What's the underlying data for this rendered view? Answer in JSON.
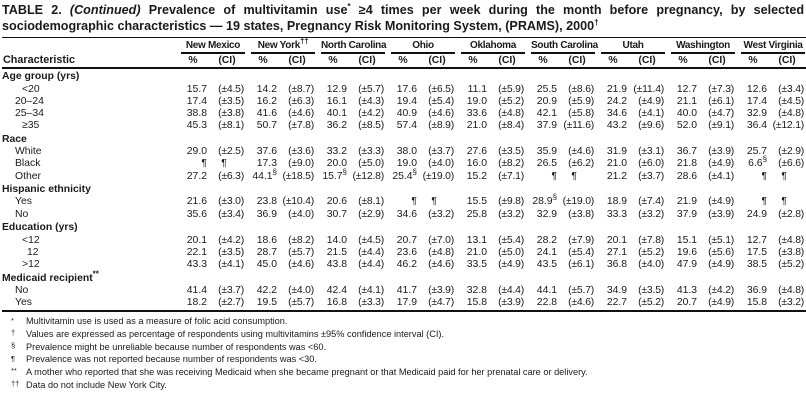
{
  "title": {
    "prefix": "TABLE 2.",
    "continued": "(Continued)",
    "rest": "Prevalence of multivitamin use* ≥4 times per week during the month before pregnancy, by selected sociodemographic characteristics — 19 states, Pregnancy Risk Monitoring System, (PRAMS), 2000†"
  },
  "header": {
    "characteristic": "Characteristic",
    "pct": "%",
    "ci": "(CI)",
    "states": [
      "New Mexico",
      "New York††",
      "North Carolina",
      "Ohio",
      "Oklahoma",
      "South Carolina",
      "Utah",
      "Washington",
      "West Virginia"
    ]
  },
  "sections": [
    {
      "label": "Age group (yrs)",
      "rows": [
        {
          "label": "<20",
          "cells": [
            [
              "15.7",
              "(±4.5)"
            ],
            [
              "14.2",
              "(±8.7)"
            ],
            [
              "12.9",
              "(±5.7)"
            ],
            [
              "17.6",
              "(±6.5)"
            ],
            [
              "11.1",
              "(±5.9)"
            ],
            [
              "25.5",
              "(±8.6)"
            ],
            [
              "21.9",
              "(±11.4)"
            ],
            [
              "12.7",
              "(±7.3)"
            ],
            [
              "12.6",
              "(±3.4)"
            ]
          ]
        },
        {
          "label": "20–24",
          "cells": [
            [
              "17.4",
              "(±3.5)"
            ],
            [
              "16.2",
              "(±6.3)"
            ],
            [
              "16.1",
              "(±4.3)"
            ],
            [
              "19.4",
              "(±5.4)"
            ],
            [
              "19.0",
              "(±5.2)"
            ],
            [
              "20.9",
              "(±5.9)"
            ],
            [
              "24.2",
              "(±4.9)"
            ],
            [
              "21.1",
              "(±6.1)"
            ],
            [
              "17.4",
              "(±4.5)"
            ]
          ]
        },
        {
          "label": "25–34",
          "cells": [
            [
              "38.8",
              "(±3.8)"
            ],
            [
              "41.6",
              "(±4.6)"
            ],
            [
              "40.1",
              "(±4.2)"
            ],
            [
              "40.9",
              "(±4.6)"
            ],
            [
              "33.6",
              "(±4.8)"
            ],
            [
              "42.1",
              "(±5.8)"
            ],
            [
              "34.6",
              "(±4.1)"
            ],
            [
              "40.0",
              "(±4.7)"
            ],
            [
              "32.9",
              "(±4.8)"
            ]
          ]
        },
        {
          "label": "≥35",
          "cells": [
            [
              "45.3",
              "(±8.1)"
            ],
            [
              "50.7",
              "(±7.8)"
            ],
            [
              "36.2",
              "(±8.5)"
            ],
            [
              "57.4",
              "(±8.9)"
            ],
            [
              "21.0",
              "(±8.4)"
            ],
            [
              "37.9",
              "(±11.6)"
            ],
            [
              "43.2",
              "(±9.6)"
            ],
            [
              "52.0",
              "(±9.1)"
            ],
            [
              "36.4",
              "(±12.1)"
            ]
          ]
        }
      ]
    },
    {
      "label": "Race",
      "rows": [
        {
          "label": "White",
          "cells": [
            [
              "29.0",
              "(±2.5)"
            ],
            [
              "37.6",
              "(±3.6)"
            ],
            [
              "33.2",
              "(±3.3)"
            ],
            [
              "38.0",
              "(±3.7)"
            ],
            [
              "27.6",
              "(±3.5)"
            ],
            [
              "35.9",
              "(±4.6)"
            ],
            [
              "31.9",
              "(±3.1)"
            ],
            [
              "36.7",
              "(±3.9)"
            ],
            [
              "25.7",
              "(±2.9)"
            ]
          ]
        },
        {
          "label": "Black",
          "cells": [
            [
              "¶",
              "¶"
            ],
            [
              "17.3",
              "(±9.0)"
            ],
            [
              "20.0",
              "(±5.0)"
            ],
            [
              "19.0",
              "(±4.0)"
            ],
            [
              "16.0",
              "(±8.2)"
            ],
            [
              "26.5",
              "(±6.2)"
            ],
            [
              "21.0",
              "(±6.0)"
            ],
            [
              "21.8",
              "(±4.9)"
            ],
            [
              "6.6§",
              "(±6.6)"
            ]
          ]
        },
        {
          "label": "Other",
          "cells": [
            [
              "27.2",
              "(±6.3)"
            ],
            [
              "44.1§",
              "(±18.5)"
            ],
            [
              "15.7§",
              "(±12.8)"
            ],
            [
              "25.4§",
              "(±19.0)"
            ],
            [
              "15.2",
              "(±7.1)"
            ],
            [
              "¶",
              "¶"
            ],
            [
              "21.2",
              "(±3.7)"
            ],
            [
              "28.6",
              "(±4.1)"
            ],
            [
              "¶",
              "¶"
            ]
          ]
        }
      ]
    },
    {
      "label": "Hispanic ethnicity",
      "rows": [
        {
          "label": "Yes",
          "cells": [
            [
              "21.6",
              "(±3.0)"
            ],
            [
              "23.8",
              "(±10.4)"
            ],
            [
              "20.6",
              "(±8.1)"
            ],
            [
              "¶",
              "¶"
            ],
            [
              "15.5",
              "(±9.8)"
            ],
            [
              "28.9§",
              "(±19.0)"
            ],
            [
              "18.9",
              "(±7.4)"
            ],
            [
              "21.9",
              "(±4.9)"
            ],
            [
              "¶",
              "¶"
            ]
          ]
        },
        {
          "label": "No",
          "cells": [
            [
              "35.6",
              "(±3.4)"
            ],
            [
              "36.9",
              "(±4.0)"
            ],
            [
              "30.7",
              "(±2.9)"
            ],
            [
              "34.6",
              "(±3.2)"
            ],
            [
              "25.8",
              "(±3.2)"
            ],
            [
              "32.9",
              "(±3.8)"
            ],
            [
              "33.3",
              "(±3.2)"
            ],
            [
              "37.9",
              "(±3.9)"
            ],
            [
              "24.9",
              "(±2.8)"
            ]
          ]
        }
      ]
    },
    {
      "label": "Education (yrs)",
      "rows": [
        {
          "label": "<12",
          "cells": [
            [
              "20.1",
              "(±4.2)"
            ],
            [
              "18.6",
              "(±8.2)"
            ],
            [
              "14.0",
              "(±4.5)"
            ],
            [
              "20.7",
              "(±7.0)"
            ],
            [
              "13.1",
              "(±5.4)"
            ],
            [
              "28.2",
              "(±7.9)"
            ],
            [
              "20.1",
              "(±7.8)"
            ],
            [
              "15.1",
              "(±5.1)"
            ],
            [
              "12.7",
              "(±4.8)"
            ]
          ]
        },
        {
          "label": "12",
          "cells": [
            [
              "22.1",
              "(±3.5)"
            ],
            [
              "28.7",
              "(±5.7)"
            ],
            [
              "21.5",
              "(±4.4)"
            ],
            [
              "23.6",
              "(±4.8)"
            ],
            [
              "21.0",
              "(±5.0)"
            ],
            [
              "24.1",
              "(±5.4)"
            ],
            [
              "27.1",
              "(±5.2)"
            ],
            [
              "19.6",
              "(±5.6)"
            ],
            [
              "17.5",
              "(±3.8)"
            ]
          ]
        },
        {
          "label": ">12",
          "cells": [
            [
              "43.3",
              "(±4.1)"
            ],
            [
              "45.0",
              "(±4.6)"
            ],
            [
              "43.8",
              "(±4.4)"
            ],
            [
              "46.2",
              "(±4.6)"
            ],
            [
              "33.5",
              "(±4.9)"
            ],
            [
              "43.5",
              "(±6.1)"
            ],
            [
              "36.8",
              "(±4.0)"
            ],
            [
              "47.9",
              "(±4.9)"
            ],
            [
              "38.5",
              "(±5.2)"
            ]
          ]
        }
      ]
    },
    {
      "label": "Medicaid recipient**",
      "rows": [
        {
          "label": "No",
          "cells": [
            [
              "41.4",
              "(±3.7)"
            ],
            [
              "42.2",
              "(±4.0)"
            ],
            [
              "42.4",
              "(±4.1)"
            ],
            [
              "41.7",
              "(±3.9)"
            ],
            [
              "32.8",
              "(±4.4)"
            ],
            [
              "44.1",
              "(±5.7)"
            ],
            [
              "34.9",
              "(±3.5)"
            ],
            [
              "41.3",
              "(±4.2)"
            ],
            [
              "36.9",
              "(±4.8)"
            ]
          ]
        },
        {
          "label": "Yes",
          "cells": [
            [
              "18.2",
              "(±2.7)"
            ],
            [
              "19.5",
              "(±5.7)"
            ],
            [
              "16.8",
              "(±3.3)"
            ],
            [
              "17.9",
              "(±4.7)"
            ],
            [
              "15.8",
              "(±3.9)"
            ],
            [
              "22.8",
              "(±4.6)"
            ],
            [
              "22.7",
              "(±5.2)"
            ],
            [
              "20.7",
              "(±4.9)"
            ],
            [
              "15.8",
              "(±3.2)"
            ]
          ]
        }
      ]
    }
  ],
  "footnotes": [
    {
      "marker": "*",
      "text": "Multivitamin use is used as a measure of folic acid consumption."
    },
    {
      "marker": "†",
      "text": "Values are expressed as percentage of respondents using multivitamins ±95% confidence interval (CI)."
    },
    {
      "marker": "§",
      "text": "Prevalence might be unreliable because number of respondents was <60."
    },
    {
      "marker": "¶",
      "text": "Prevalence was not reported because number of respondents was <30."
    },
    {
      "marker": "**",
      "text": "A mother who reported that she was receiving Medicaid when she became pregnant or that Medicaid paid for her prenatal care or delivery."
    },
    {
      "marker": "††",
      "text": "Data do not include New York City."
    }
  ]
}
